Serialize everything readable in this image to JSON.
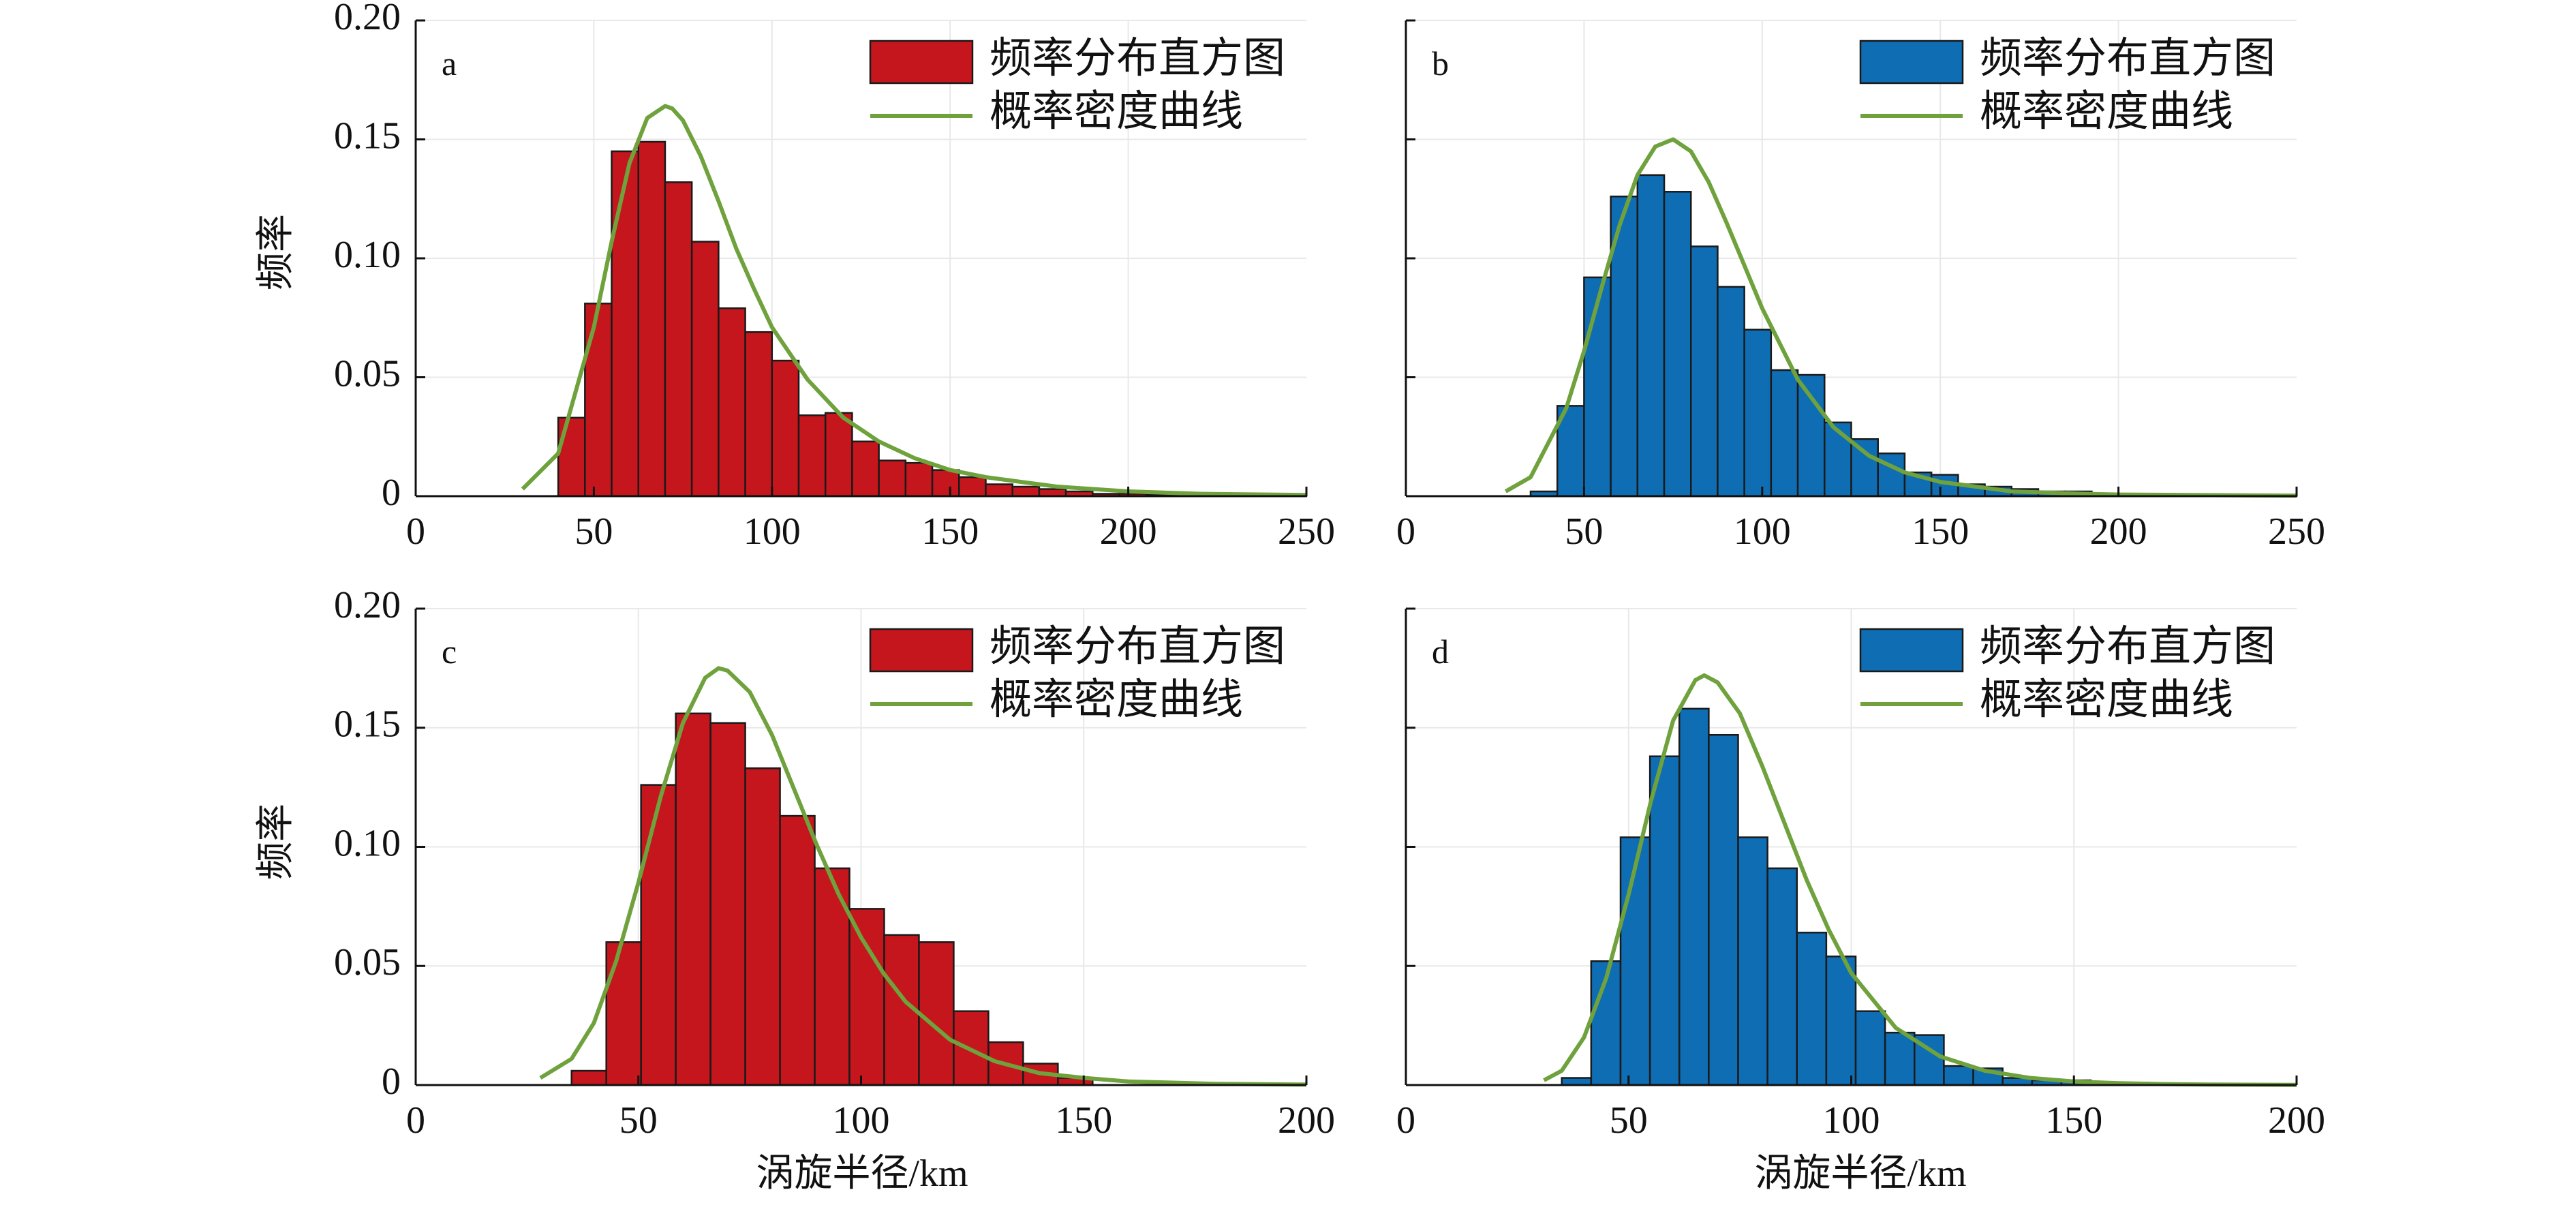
{
  "x_axis_label": "涡旋半径/km",
  "y_axis_label": "频率",
  "legend": {
    "histogram_label": "频率分布直方图",
    "curve_label": "概率密度曲线"
  },
  "colors": {
    "red_bars": "#c4161c",
    "blue_bars": "#0e6db3",
    "curve": "#6fa23d",
    "grid": "#e8e8e8",
    "axis": "#111111"
  },
  "chart_data": [
    {
      "type": "bar",
      "panel": "a",
      "bar_color": "red",
      "xlim": [
        0,
        250
      ],
      "ylim": [
        0,
        0.2
      ],
      "x_ticks": [
        0,
        50,
        100,
        150,
        200,
        250
      ],
      "y_ticks": [
        0,
        0.05,
        0.1,
        0.15,
        0.2
      ],
      "y_tick_labels": [
        "0",
        "0.05",
        "0.10",
        "0.15",
        "0.20"
      ],
      "grid": true,
      "legend_position": "top-right",
      "bin_width": 7.5,
      "bin_start": 40,
      "values": [
        0.033,
        0.081,
        0.145,
        0.149,
        0.132,
        0.107,
        0.079,
        0.069,
        0.057,
        0.034,
        0.035,
        0.023,
        0.015,
        0.014,
        0.011,
        0.008,
        0.005,
        0.004,
        0.003,
        0.002,
        0.001,
        0.001,
        0.0005,
        0.0005,
        0.0005,
        0.0003,
        0.0003,
        0.0003,
        0.0002,
        0.0002,
        0.0002,
        0.0001
      ],
      "curve": {
        "x": [
          30,
          40,
          50,
          55,
          60,
          65,
          70,
          72,
          75,
          80,
          85,
          90,
          95,
          100,
          110,
          120,
          130,
          140,
          150,
          160,
          170,
          180,
          190,
          200,
          220,
          250
        ],
        "y": [
          0.003,
          0.018,
          0.071,
          0.107,
          0.14,
          0.159,
          0.164,
          0.163,
          0.158,
          0.143,
          0.124,
          0.104,
          0.087,
          0.071,
          0.049,
          0.033,
          0.023,
          0.016,
          0.011,
          0.008,
          0.006,
          0.004,
          0.003,
          0.002,
          0.001,
          0.0005
        ]
      }
    },
    {
      "type": "bar",
      "panel": "b",
      "bar_color": "blue",
      "xlim": [
        0,
        250
      ],
      "ylim": [
        0,
        0.2
      ],
      "x_ticks": [
        0,
        50,
        100,
        150,
        200,
        250
      ],
      "y_ticks": [
        0,
        0.05,
        0.1,
        0.15,
        0.2
      ],
      "grid": true,
      "legend_position": "top-right",
      "bin_width": 7.5,
      "bin_start": 35,
      "values": [
        0.002,
        0.038,
        0.092,
        0.126,
        0.135,
        0.128,
        0.105,
        0.088,
        0.07,
        0.053,
        0.051,
        0.031,
        0.024,
        0.018,
        0.01,
        0.009,
        0.005,
        0.004,
        0.003,
        0.002,
        0.002,
        0.001,
        0.001,
        0.0005,
        0.0005,
        0.0005,
        0.0003,
        0.0003,
        0.0002,
        0.0002,
        0.0001,
        0.0001
      ],
      "curve": {
        "x": [
          28,
          35,
          45,
          50,
          55,
          60,
          65,
          70,
          75,
          80,
          85,
          90,
          95,
          100,
          110,
          120,
          130,
          140,
          150,
          160,
          170,
          180,
          190,
          200,
          250
        ],
        "y": [
          0.002,
          0.008,
          0.037,
          0.061,
          0.088,
          0.114,
          0.135,
          0.147,
          0.15,
          0.145,
          0.132,
          0.115,
          0.097,
          0.079,
          0.049,
          0.029,
          0.017,
          0.01,
          0.006,
          0.004,
          0.002,
          0.0015,
          0.001,
          0.0007,
          0.0002
        ]
      }
    },
    {
      "type": "bar",
      "panel": "c",
      "bar_color": "red",
      "xlim": [
        0,
        200
      ],
      "ylim": [
        0,
        0.2
      ],
      "x_ticks": [
        0,
        50,
        100,
        150,
        200
      ],
      "y_ticks": [
        0,
        0.05,
        0.1,
        0.15,
        0.2
      ],
      "y_tick_labels": [
        "0",
        "0.05",
        "0.10",
        "0.15",
        "0.20"
      ],
      "grid": true,
      "legend_position": "top-right",
      "bin_width": 7.8,
      "bin_start": 35,
      "values": [
        0.006,
        0.06,
        0.126,
        0.156,
        0.152,
        0.133,
        0.113,
        0.091,
        0.074,
        0.063,
        0.06,
        0.031,
        0.018,
        0.009,
        0.003
      ],
      "curve": {
        "x": [
          28,
          35,
          40,
          45,
          50,
          55,
          60,
          65,
          68,
          70,
          75,
          80,
          85,
          90,
          95,
          100,
          105,
          110,
          120,
          130,
          140,
          150,
          160,
          170,
          180,
          200
        ],
        "y": [
          0.003,
          0.011,
          0.026,
          0.052,
          0.085,
          0.121,
          0.152,
          0.171,
          0.175,
          0.174,
          0.165,
          0.147,
          0.124,
          0.101,
          0.08,
          0.062,
          0.047,
          0.035,
          0.019,
          0.01,
          0.005,
          0.003,
          0.0015,
          0.001,
          0.0005,
          0.0002
        ]
      }
    },
    {
      "type": "bar",
      "panel": "d",
      "bar_color": "blue",
      "xlim": [
        0,
        200
      ],
      "ylim": [
        0,
        0.2
      ],
      "x_ticks": [
        0,
        50,
        100,
        150,
        200
      ],
      "y_ticks": [
        0,
        0.05,
        0.1,
        0.15,
        0.2
      ],
      "grid": true,
      "legend_position": "top-right",
      "bin_width": 6.6,
      "bin_start": 35,
      "values": [
        0.003,
        0.052,
        0.104,
        0.138,
        0.158,
        0.147,
        0.104,
        0.091,
        0.064,
        0.054,
        0.031,
        0.022,
        0.021,
        0.008,
        0.007,
        0.003,
        0.002,
        0.002,
        0.001,
        0.001,
        0.0005,
        0.0005,
        0.0003
      ],
      "curve": {
        "x": [
          31,
          35,
          40,
          45,
          50,
          55,
          60,
          65,
          67,
          70,
          75,
          80,
          85,
          90,
          95,
          100,
          110,
          120,
          130,
          140,
          150,
          160,
          170,
          180,
          200
        ],
        "y": [
          0.002,
          0.006,
          0.02,
          0.045,
          0.08,
          0.119,
          0.153,
          0.17,
          0.172,
          0.169,
          0.156,
          0.134,
          0.11,
          0.086,
          0.065,
          0.047,
          0.024,
          0.012,
          0.006,
          0.003,
          0.0015,
          0.0008,
          0.0004,
          0.0002,
          0.0001
        ]
      }
    }
  ]
}
